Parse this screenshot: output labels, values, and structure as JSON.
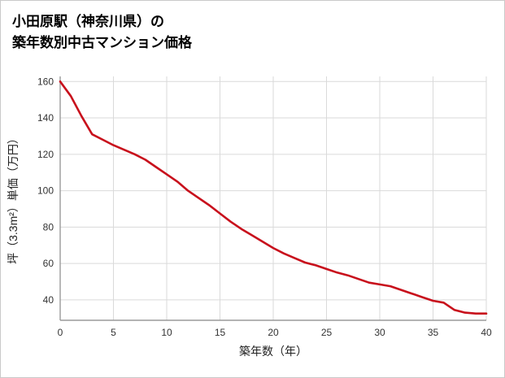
{
  "title": {
    "line1": "小田原駅（神奈川県）の",
    "line2": "築年数別中古マンション価格"
  },
  "chart_data": {
    "type": "line",
    "title": "小田原駅（神奈川県）の築年数別中古マンション価格",
    "xlabel": "築年数（年）",
    "ylabel": "坪（3.3m²）単価（万円）",
    "x": [
      0,
      1,
      2,
      3,
      4,
      5,
      6,
      7,
      8,
      9,
      10,
      11,
      12,
      13,
      14,
      15,
      16,
      17,
      18,
      19,
      20,
      21,
      22,
      23,
      24,
      25,
      26,
      27,
      28,
      29,
      30,
      31,
      32,
      33,
      34,
      35,
      36,
      37,
      38,
      39,
      40
    ],
    "values": [
      160,
      152,
      141,
      131,
      128,
      125,
      122.5,
      120,
      117,
      113,
      109,
      105,
      100,
      96,
      92,
      87.5,
      83,
      79,
      75.5,
      72,
      68.5,
      65.5,
      63,
      60.5,
      59,
      57,
      55,
      53.5,
      51.5,
      49.5,
      48.5,
      47.5,
      45.5,
      43.5,
      41.5,
      39.5,
      38.5,
      34.5,
      33,
      32.5,
      32.5
    ],
    "xlim": [
      0,
      40
    ],
    "ylim": [
      28.8,
      162.8
    ],
    "xticks": [
      0,
      5,
      10,
      15,
      20,
      25,
      30,
      35,
      40
    ],
    "yticks": [
      40,
      60,
      80,
      100,
      120,
      140,
      160
    ],
    "grid": true,
    "legend": false
  },
  "colors": {
    "line": "#c8101c",
    "grid": "#dadada",
    "axis": "#9a9a9a",
    "tick_text": "#333333",
    "title_text": "#000000"
  }
}
